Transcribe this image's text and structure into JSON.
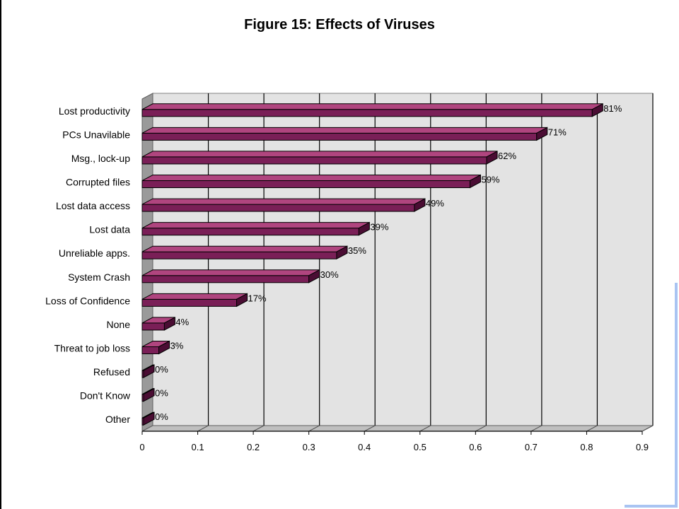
{
  "chart_data": {
    "type": "bar",
    "orientation": "horizontal",
    "title": "Figure 15:  Effects of Viruses",
    "categories": [
      "Lost productivity",
      "PCs Unavilable",
      "Msg., lock-up",
      "Corrupted files",
      "Lost data access",
      "Lost data",
      "Unreliable apps.",
      "System Crash",
      "Loss of Confidence",
      "None",
      "Threat to job loss",
      "Refused",
      "Don't Know",
      "Other"
    ],
    "values": [
      0.81,
      0.71,
      0.62,
      0.59,
      0.49,
      0.39,
      0.35,
      0.3,
      0.17,
      0.04,
      0.03,
      0.0,
      0.0,
      0.0
    ],
    "data_labels": [
      "81%",
      "71%",
      "62%",
      "59%",
      "49%",
      "39%",
      "35%",
      "30%",
      "17%",
      "4%",
      "3%",
      "0%",
      "0%",
      "0%"
    ],
    "x_ticks": [
      "0",
      "0.1",
      "0.2",
      "0.3",
      "0.4",
      "0.5",
      "0.6",
      "0.7",
      "0.8",
      "0.9"
    ],
    "xlim": [
      0,
      0.9
    ],
    "xlabel": "",
    "ylabel": "",
    "grid": true,
    "style": "3d",
    "colors": {
      "bar_front": "#7a1f57",
      "bar_top": "#b0457f",
      "bar_side": "#4a0d33",
      "plot_back": "#e3e3e3",
      "plot_floor": "#bfbfbf",
      "gridline": "#000000"
    }
  }
}
